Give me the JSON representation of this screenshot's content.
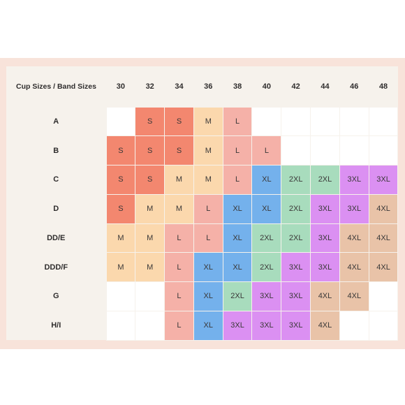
{
  "corner_label": "Cup Sizes / Band Sizes",
  "band_sizes": [
    "30",
    "32",
    "34",
    "36",
    "38",
    "40",
    "42",
    "44",
    "46",
    "48"
  ],
  "rows": [
    {
      "cup": "A",
      "sizes": [
        "",
        "S",
        "S",
        "M",
        "L",
        "",
        "",
        "",
        "",
        ""
      ]
    },
    {
      "cup": "B",
      "sizes": [
        "S",
        "S",
        "S",
        "M",
        "L",
        "L",
        "",
        "",
        "",
        ""
      ]
    },
    {
      "cup": "C",
      "sizes": [
        "S",
        "S",
        "M",
        "M",
        "L",
        "XL",
        "2XL",
        "2XL",
        "3XL",
        "3XL"
      ]
    },
    {
      "cup": "D",
      "sizes": [
        "S",
        "M",
        "M",
        "L",
        "XL",
        "XL",
        "2XL",
        "3XL",
        "3XL",
        "4XL"
      ]
    },
    {
      "cup": "DD/E",
      "sizes": [
        "M",
        "M",
        "L",
        "L",
        "XL",
        "2XL",
        "2XL",
        "3XL",
        "4XL",
        "4XL"
      ]
    },
    {
      "cup": "DDD/F",
      "sizes": [
        "M",
        "M",
        "L",
        "XL",
        "XL",
        "2XL",
        "3XL",
        "3XL",
        "4XL",
        "4XL"
      ]
    },
    {
      "cup": "G",
      "sizes": [
        "",
        "",
        "L",
        "XL",
        "2XL",
        "3XL",
        "3XL",
        "4XL",
        "4XL",
        ""
      ]
    },
    {
      "cup": "H/I",
      "sizes": [
        "",
        "",
        "L",
        "XL",
        "3XL",
        "3XL",
        "3XL",
        "4XL",
        "",
        ""
      ]
    }
  ],
  "size_colors": {
    "S": "#f3876f",
    "M": "#fbd8ad",
    "L": "#f5b1a8",
    "XL": "#74b1ec",
    "2XL": "#a8dcbd",
    "3XL": "#db90f2",
    "4XL": "#e9c3a8",
    "empty": "#ffffff"
  },
  "background_colors": {
    "frame": "#f8e3da",
    "header": "#f6f2ec"
  }
}
